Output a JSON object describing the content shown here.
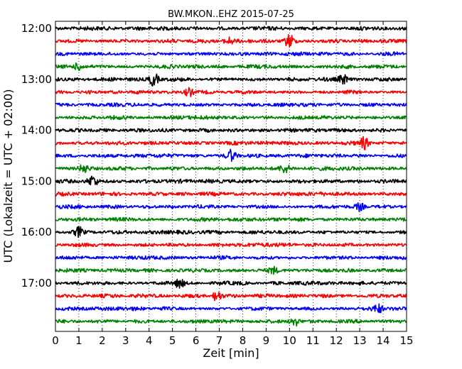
{
  "chart_data": {
    "type": "line",
    "title": "BW.MKON..EHZ 2015-07-25",
    "xlabel": "Zeit  [min]",
    "ylabel": "UTC (Lokalzeit = UTC + 02:00)",
    "xlim": [
      0,
      15
    ],
    "x_ticks": [
      0,
      1,
      2,
      3,
      4,
      5,
      6,
      7,
      8,
      9,
      10,
      11,
      12,
      13,
      14,
      15
    ],
    "x_tick_labels": [
      "0",
      "1",
      "2",
      "3",
      "4",
      "5",
      "6",
      "7",
      "8",
      "9",
      "10",
      "11",
      "12",
      "13",
      "14",
      "15"
    ],
    "y_tick_labels": [
      "12:00",
      "13:00",
      "14:00",
      "15:00",
      "16:00",
      "17:00"
    ],
    "grid": "vertical dotted",
    "colors": [
      "#000000",
      "#ff0000",
      "#0000ff",
      "#008000"
    ],
    "trace_interval_minutes": 15,
    "trace_start_times": [
      "12:00",
      "12:15",
      "12:30",
      "12:45",
      "13:00",
      "13:15",
      "13:30",
      "13:45",
      "14:00",
      "14:15",
      "14:30",
      "14:45",
      "15:00",
      "15:15",
      "15:30",
      "15:45",
      "16:00",
      "16:15",
      "16:30",
      "16:45",
      "17:00",
      "17:15",
      "17:30",
      "17:45"
    ],
    "events": [
      {
        "trace": "12:15",
        "x": 7.4,
        "amp": 0.6
      },
      {
        "trace": "12:15",
        "x": 10.0,
        "amp": 1.3
      },
      {
        "trace": "12:45",
        "x": 1.0,
        "amp": 0.7
      },
      {
        "trace": "13:00",
        "x": 4.2,
        "amp": 1.2
      },
      {
        "trace": "13:00",
        "x": 12.3,
        "amp": 0.8
      },
      {
        "trace": "13:15",
        "x": 5.7,
        "amp": 0.7
      },
      {
        "trace": "14:15",
        "x": 13.2,
        "amp": 1.0
      },
      {
        "trace": "14:30",
        "x": 7.5,
        "amp": 0.9
      },
      {
        "trace": "14:45",
        "x": 1.2,
        "amp": 0.7
      },
      {
        "trace": "14:45",
        "x": 9.8,
        "amp": 0.6
      },
      {
        "trace": "15:00",
        "x": 1.6,
        "amp": 0.9
      },
      {
        "trace": "15:30",
        "x": 13.0,
        "amp": 0.7
      },
      {
        "trace": "16:00",
        "x": 1.0,
        "amp": 0.8
      },
      {
        "trace": "16:45",
        "x": 9.3,
        "amp": 0.6
      },
      {
        "trace": "17:00",
        "x": 5.3,
        "amp": 0.8
      },
      {
        "trace": "17:15",
        "x": 6.9,
        "amp": 0.9
      },
      {
        "trace": "17:30",
        "x": 13.8,
        "amp": 0.8
      },
      {
        "trace": "17:45",
        "x": 10.2,
        "amp": 0.9
      }
    ]
  }
}
